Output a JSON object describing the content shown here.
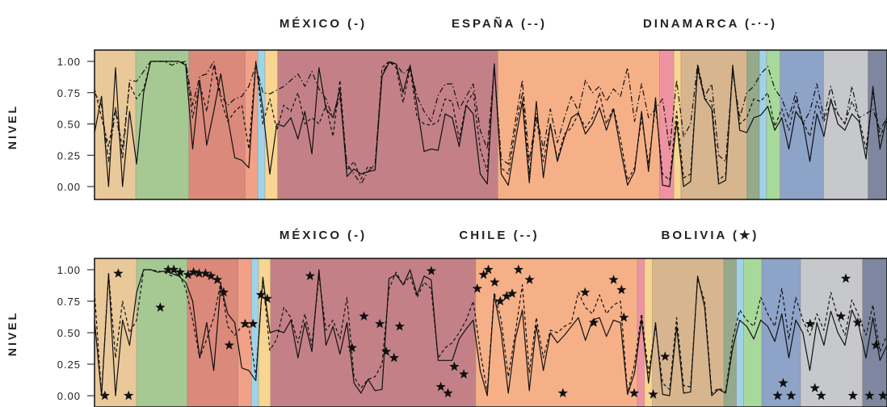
{
  "chart_data": [
    {
      "type": "line",
      "titles": [
        "MÉXICO (-)",
        "ESPAÑA (--)",
        "DINAMARCA (-·-)"
      ],
      "ylabel": "NIVEL",
      "ylim": [
        0,
        1
      ],
      "yticks": [
        "0.00",
        "0.25",
        "0.50",
        "0.75",
        "1.00"
      ],
      "xlim": [
        0,
        100
      ],
      "regions": [
        {
          "start": 0,
          "end": 5.2,
          "color": "#e9c89a"
        },
        {
          "start": 5.2,
          "end": 11.9,
          "color": "#a6c994"
        },
        {
          "start": 11.9,
          "end": 19.0,
          "color": "#da897b"
        },
        {
          "start": 19.0,
          "end": 20.6,
          "color": "#f0a188"
        },
        {
          "start": 20.6,
          "end": 21.5,
          "color": "#9fd3ea"
        },
        {
          "start": 21.5,
          "end": 23.1,
          "color": "#f8d590"
        },
        {
          "start": 23.1,
          "end": 50.9,
          "color": "#c38187"
        },
        {
          "start": 50.9,
          "end": 71.3,
          "color": "#f6b088"
        },
        {
          "start": 71.3,
          "end": 73.1,
          "color": "#ef93a2"
        },
        {
          "start": 73.1,
          "end": 74.0,
          "color": "#f8d590"
        },
        {
          "start": 74.0,
          "end": 82.3,
          "color": "#d7b68f"
        },
        {
          "start": 82.3,
          "end": 83.9,
          "color": "#95a98b"
        },
        {
          "start": 83.9,
          "end": 84.8,
          "color": "#9fd3ea"
        },
        {
          "start": 84.8,
          "end": 86.5,
          "color": "#a6d99a"
        },
        {
          "start": 86.5,
          "end": 92.0,
          "color": "#8da3c8"
        },
        {
          "start": 92.0,
          "end": 97.6,
          "color": "#c7c8cc"
        },
        {
          "start": 97.6,
          "end": 100,
          "color": "#7e879f"
        }
      ],
      "series": [
        {
          "name": "MÉXICO",
          "dash": "solid",
          "values": [
            0.43,
            0.72,
            0.0,
            0.95,
            0.0,
            0.6,
            0.18,
            0.75,
            1.0,
            1.0,
            1.0,
            1.0,
            1.0,
            0.97,
            0.3,
            0.85,
            0.33,
            0.6,
            0.9,
            0.55,
            0.23,
            0.21,
            0.15,
            0.99,
            0.62,
            0.1,
            0.5,
            0.48,
            0.55,
            0.38,
            0.6,
            0.26,
            0.95,
            0.62,
            0.55,
            0.78,
            0.08,
            0.14,
            0.1,
            0.12,
            0.13,
            0.88,
            0.99,
            0.98,
            0.75,
            0.97,
            0.65,
            0.28,
            0.3,
            0.29,
            0.58,
            0.55,
            0.32,
            0.65,
            0.58,
            0.1,
            0.02,
            0.98,
            0.1,
            0.01,
            0.36,
            0.68,
            0.03,
            0.68,
            0.07,
            0.5,
            0.2,
            0.39,
            0.55,
            0.59,
            0.42,
            0.5,
            0.63,
            0.45,
            0.62,
            0.3,
            0.01,
            0.12,
            0.6,
            0.12,
            0.71,
            0.01,
            0.0,
            0.52,
            0.0,
            0.04,
            0.96,
            0.7,
            0.62,
            0.02,
            0.05,
            0.97,
            0.45,
            0.43,
            0.55,
            0.57,
            0.64,
            0.45,
            0.55,
            0.3,
            0.6,
            0.52,
            0.2,
            0.58,
            0.4,
            0.7,
            0.5,
            0.45,
            0.58,
            0.52,
            0.22,
            0.8,
            0.3,
            0.56
          ]
        },
        {
          "name": "ESPAÑA",
          "dash": "dashed",
          "values": [
            0.78,
            0.55,
            0.32,
            0.63,
            0.3,
            0.82,
            0.7,
            0.78,
            1.0,
            1.0,
            1.0,
            1.0,
            1.0,
            0.98,
            0.55,
            0.82,
            0.6,
            0.97,
            0.7,
            0.52,
            0.6,
            0.65,
            0.3,
            1.0,
            0.5,
            0.7,
            0.45,
            0.65,
            0.6,
            0.75,
            0.5,
            0.55,
            0.5,
            0.65,
            0.4,
            0.85,
            0.13,
            0.2,
            0.06,
            0.16,
            0.14,
            0.95,
            1.0,
            0.95,
            0.67,
            0.95,
            0.55,
            0.5,
            0.49,
            0.52,
            0.7,
            0.68,
            0.38,
            0.66,
            0.75,
            0.3,
            0.12,
            0.98,
            0.15,
            0.1,
            0.45,
            0.75,
            0.1,
            0.55,
            0.2,
            0.5,
            0.22,
            0.42,
            0.47,
            0.58,
            0.47,
            0.55,
            0.75,
            0.5,
            0.63,
            0.38,
            0.05,
            0.15,
            0.55,
            0.18,
            0.65,
            0.1,
            0.05,
            0.6,
            0.07,
            0.1,
            0.93,
            0.7,
            0.68,
            0.05,
            0.1,
            0.93,
            0.5,
            0.55,
            0.7,
            0.68,
            0.75,
            0.48,
            0.62,
            0.45,
            0.7,
            0.52,
            0.4,
            0.68,
            0.52,
            0.68,
            0.58,
            0.5,
            0.68,
            0.55,
            0.3,
            0.75,
            0.4,
            0.52
          ]
        },
        {
          "name": "DINAMARCA",
          "dash": "dashdot",
          "values": [
            0.75,
            0.65,
            0.2,
            0.62,
            0.22,
            0.85,
            0.84,
            0.92,
            1.0,
            1.0,
            1.0,
            0.97,
            0.99,
            1.0,
            0.65,
            0.88,
            0.9,
            1.0,
            0.73,
            0.65,
            0.7,
            0.72,
            0.8,
            0.97,
            0.75,
            0.74,
            0.77,
            0.8,
            0.85,
            0.9,
            0.8,
            0.92,
            0.78,
            0.7,
            0.55,
            0.72,
            0.18,
            0.1,
            0.02,
            0.12,
            0.18,
            0.9,
            1.0,
            0.98,
            0.9,
            0.95,
            0.72,
            0.6,
            0.52,
            0.73,
            0.82,
            0.82,
            0.62,
            0.72,
            0.82,
            0.45,
            0.3,
            0.95,
            0.22,
            0.18,
            0.52,
            0.85,
            0.2,
            0.58,
            0.3,
            0.62,
            0.35,
            0.55,
            0.72,
            0.6,
            0.85,
            0.75,
            0.8,
            0.68,
            0.78,
            0.72,
            0.95,
            0.52,
            0.82,
            0.55,
            0.62,
            0.7,
            0.3,
            0.85,
            0.4,
            0.5,
            0.98,
            0.72,
            0.82,
            0.25,
            0.2,
            0.92,
            0.55,
            0.75,
            0.8,
            0.9,
            0.96,
            0.78,
            0.7,
            0.55,
            0.75,
            0.5,
            0.6,
            0.82,
            0.55,
            0.8,
            0.58,
            0.5,
            0.8,
            0.55,
            0.58,
            0.62,
            0.45,
            0.55
          ]
        }
      ]
    },
    {
      "type": "line",
      "titles": [
        "MÉXICO (-)",
        "CHILE (--)",
        "BOLIVIA (★)"
      ],
      "ylabel": "NIVEL",
      "ylim": [
        0,
        1
      ],
      "yticks": [
        "0.00",
        "0.25",
        "0.50",
        "0.75",
        "1.00"
      ],
      "xlim": [
        0,
        100
      ],
      "regions": [
        {
          "start": 0,
          "end": 5.3,
          "color": "#e9c89a"
        },
        {
          "start": 5.3,
          "end": 11.7,
          "color": "#a6c994"
        },
        {
          "start": 11.7,
          "end": 18.1,
          "color": "#da897b"
        },
        {
          "start": 18.1,
          "end": 19.8,
          "color": "#f0a188"
        },
        {
          "start": 19.8,
          "end": 20.7,
          "color": "#9fd3ea"
        },
        {
          "start": 20.7,
          "end": 22.2,
          "color": "#f8d590"
        },
        {
          "start": 22.2,
          "end": 48.1,
          "color": "#c38187"
        },
        {
          "start": 48.1,
          "end": 68.5,
          "color": "#f6b088"
        },
        {
          "start": 68.5,
          "end": 69.4,
          "color": "#ef93a2"
        },
        {
          "start": 69.4,
          "end": 70.4,
          "color": "#f8d590"
        },
        {
          "start": 70.4,
          "end": 79.4,
          "color": "#d7b68f"
        },
        {
          "start": 79.4,
          "end": 81.0,
          "color": "#95a98b"
        },
        {
          "start": 81.0,
          "end": 81.9,
          "color": "#9fd3ea"
        },
        {
          "start": 81.9,
          "end": 84.2,
          "color": "#a6d99a"
        },
        {
          "start": 84.2,
          "end": 89.1,
          "color": "#8da3c8"
        },
        {
          "start": 89.1,
          "end": 96.9,
          "color": "#c7c8cc"
        },
        {
          "start": 96.9,
          "end": 100,
          "color": "#7e879f"
        }
      ],
      "series": [
        {
          "name": "MÉXICO",
          "dash": "solid",
          "values": [
            0.6,
            0.0,
            0.97,
            0.0,
            0.6,
            0.4,
            0.82,
            1.0,
            1.0,
            0.98,
            0.99,
            0.97,
            0.95,
            0.9,
            0.75,
            0.3,
            0.58,
            0.2,
            0.88,
            0.65,
            0.58,
            0.22,
            0.2,
            0.12,
            0.94,
            0.5,
            0.52,
            0.5,
            0.6,
            0.3,
            0.58,
            0.35,
            1.0,
            0.4,
            0.55,
            0.33,
            0.58,
            0.1,
            0.02,
            0.13,
            0.04,
            0.05,
            0.93,
            0.96,
            0.88,
            1.0,
            0.8,
            0.95,
            0.92,
            0.28,
            0.28,
            0.28,
            0.45,
            0.53,
            0.6,
            0.2,
            0.0,
            0.8,
            0.5,
            0.02,
            0.45,
            0.68,
            0.04,
            0.56,
            0.2,
            0.5,
            0.42,
            0.48,
            0.55,
            0.62,
            0.44,
            0.6,
            0.62,
            0.47,
            0.6,
            0.58,
            0.01,
            0.18,
            0.61,
            0.1,
            0.58,
            0.01,
            0.0,
            0.55,
            0.02,
            0.03,
            0.95,
            0.7,
            0.0,
            0.05,
            0.02,
            0.38,
            0.6,
            0.55,
            0.45,
            0.6,
            0.55,
            0.43,
            0.65,
            0.3,
            0.6,
            0.5,
            0.2,
            0.58,
            0.4,
            0.67,
            0.5,
            0.4,
            0.68,
            0.55,
            0.3,
            0.62,
            0.28,
            0.4
          ]
        },
        {
          "name": "CHILE",
          "dash": "dashed",
          "values": [
            0.82,
            0.0,
            0.97,
            0.3,
            0.75,
            0.5,
            0.6,
            1.0,
            1.0,
            0.99,
            0.98,
            0.95,
            0.97,
            0.85,
            0.6,
            0.3,
            0.45,
            0.62,
            0.9,
            0.55,
            0.48,
            0.55,
            0.55,
            0.15,
            0.93,
            0.36,
            0.45,
            0.7,
            0.62,
            0.42,
            0.65,
            0.4,
            0.95,
            0.52,
            0.6,
            0.45,
            0.78,
            0.15,
            0.06,
            0.13,
            0.15,
            0.25,
            0.85,
            0.98,
            0.88,
            0.95,
            0.78,
            0.9,
            0.85,
            0.3,
            0.38,
            0.42,
            0.5,
            0.6,
            0.75,
            0.35,
            0.03,
            0.82,
            0.6,
            0.15,
            0.5,
            0.88,
            0.18,
            0.62,
            0.3,
            0.52,
            0.5,
            0.55,
            0.58,
            0.82,
            0.7,
            0.65,
            0.8,
            0.65,
            0.72,
            0.75,
            0.02,
            0.25,
            0.65,
            0.18,
            0.55,
            0.1,
            0.05,
            0.62,
            0.08,
            0.07,
            0.93,
            0.75,
            0.02,
            0.06,
            0.03,
            0.45,
            0.68,
            0.6,
            0.55,
            0.78,
            0.65,
            0.55,
            0.85,
            0.45,
            0.78,
            0.6,
            0.48,
            0.65,
            0.52,
            0.82,
            0.62,
            0.48,
            0.76,
            0.63,
            0.48,
            0.72,
            0.35,
            0.48
          ]
        },
        {
          "name": "BOLIVIA",
          "marker": "star",
          "points": [
            [
              1.3,
              0.0
            ],
            [
              3.0,
              0.97
            ],
            [
              4.3,
              0.0
            ],
            [
              8.3,
              0.7
            ],
            [
              9.3,
              1.0
            ],
            [
              10.0,
              1.0
            ],
            [
              10.8,
              0.98
            ],
            [
              11.8,
              0.96
            ],
            [
              12.5,
              0.98
            ],
            [
              13.2,
              0.97
            ],
            [
              14.0,
              0.97
            ],
            [
              14.7,
              0.95
            ],
            [
              15.5,
              0.92
            ],
            [
              16.3,
              0.82
            ],
            [
              17.0,
              0.4
            ],
            [
              19.0,
              0.57
            ],
            [
              20.0,
              0.57
            ],
            [
              21.0,
              0.8
            ],
            [
              21.8,
              0.77
            ],
            [
              27.2,
              0.95
            ],
            [
              32.5,
              0.38
            ],
            [
              34.0,
              0.63
            ],
            [
              36.0,
              0.57
            ],
            [
              36.8,
              0.35
            ],
            [
              37.8,
              0.3
            ],
            [
              38.5,
              0.55
            ],
            [
              42.5,
              0.99
            ],
            [
              43.7,
              0.07
            ],
            [
              44.6,
              0.02
            ],
            [
              45.4,
              0.23
            ],
            [
              46.6,
              0.17
            ],
            [
              48.3,
              0.85
            ],
            [
              49.1,
              0.96
            ],
            [
              49.7,
              1.0
            ],
            [
              50.5,
              0.9
            ],
            [
              51.2,
              0.75
            ],
            [
              52.0,
              0.79
            ],
            [
              52.7,
              0.81
            ],
            [
              53.5,
              1.0
            ],
            [
              54.9,
              0.92
            ],
            [
              59.1,
              0.02
            ],
            [
              61.9,
              0.82
            ],
            [
              63.0,
              0.58
            ],
            [
              65.5,
              0.92
            ],
            [
              66.5,
              0.84
            ],
            [
              66.8,
              0.62
            ],
            [
              68.1,
              0.02
            ],
            [
              70.5,
              0.01
            ],
            [
              72.0,
              0.31
            ],
            [
              86.2,
              0.0
            ],
            [
              86.9,
              0.1
            ],
            [
              87.9,
              0.0
            ],
            [
              90.3,
              0.57
            ],
            [
              90.9,
              0.06
            ],
            [
              91.7,
              0.0
            ],
            [
              94.2,
              0.63
            ],
            [
              94.8,
              0.93
            ],
            [
              95.7,
              0.0
            ],
            [
              96.3,
              0.58
            ],
            [
              97.8,
              0.0
            ],
            [
              98.6,
              0.4
            ],
            [
              99.5,
              0.0
            ]
          ]
        }
      ]
    }
  ]
}
